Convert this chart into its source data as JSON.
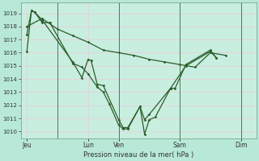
{
  "background_color": "#b8e8d8",
  "plot_bg_color": "#c8eee0",
  "grid_color": "#e8d0d8",
  "line_color": "#2a5e2a",
  "title": "Pression niveau de la mer( hPa )",
  "ylim": [
    1009.5,
    1019.8
  ],
  "yticks": [
    1010,
    1011,
    1012,
    1013,
    1014,
    1015,
    1016,
    1017,
    1018,
    1019
  ],
  "xtick_labels": [
    "Jeu",
    "",
    "Lun",
    "Ven",
    "",
    "Sam",
    "",
    "Dim"
  ],
  "xtick_positions": [
    0,
    1,
    2,
    3,
    4,
    5,
    6,
    7
  ],
  "xlim": [
    -0.2,
    7.5
  ],
  "vlines": [
    1,
    3,
    5,
    7
  ],
  "series1_x": [
    0.0,
    0.15,
    0.25,
    0.5,
    0.75,
    1.5,
    1.8,
    2.0,
    2.3,
    2.5,
    2.7,
    3.0,
    3.15,
    3.3,
    3.7,
    3.85,
    4.0,
    4.2,
    4.7,
    5.2,
    6.0,
    6.2
  ],
  "series1_y": [
    1016.1,
    1019.2,
    1019.1,
    1018.3,
    1018.3,
    1015.2,
    1014.9,
    1014.4,
    1013.4,
    1013.0,
    1012.1,
    1010.5,
    1010.2,
    1010.2,
    1011.9,
    1009.8,
    1010.9,
    1011.1,
    1013.3,
    1015.0,
    1016.1,
    1015.6
  ],
  "series2_x": [
    0.0,
    0.15,
    0.25,
    0.5,
    1.5,
    1.8,
    2.0,
    2.1,
    2.3,
    2.5,
    3.0,
    3.15,
    3.3,
    3.7,
    3.85,
    4.0,
    4.7,
    4.85,
    5.2,
    6.0,
    6.2
  ],
  "series2_y": [
    1017.4,
    1019.2,
    1019.1,
    1018.5,
    1015.3,
    1014.1,
    1015.5,
    1015.4,
    1013.6,
    1013.5,
    1010.9,
    1010.3,
    1010.3,
    1011.9,
    1010.9,
    1011.3,
    1013.3,
    1013.3,
    1015.1,
    1016.2,
    1015.6
  ],
  "series3_x": [
    0.0,
    0.5,
    1.0,
    1.5,
    2.0,
    2.5,
    3.0,
    3.5,
    4.0,
    4.5,
    5.0,
    5.5,
    6.0,
    6.5
  ],
  "series3_y": [
    1018.0,
    1018.6,
    1017.8,
    1017.3,
    1016.8,
    1016.2,
    1016.0,
    1015.8,
    1015.5,
    1015.3,
    1015.1,
    1014.9,
    1016.0,
    1015.8
  ]
}
